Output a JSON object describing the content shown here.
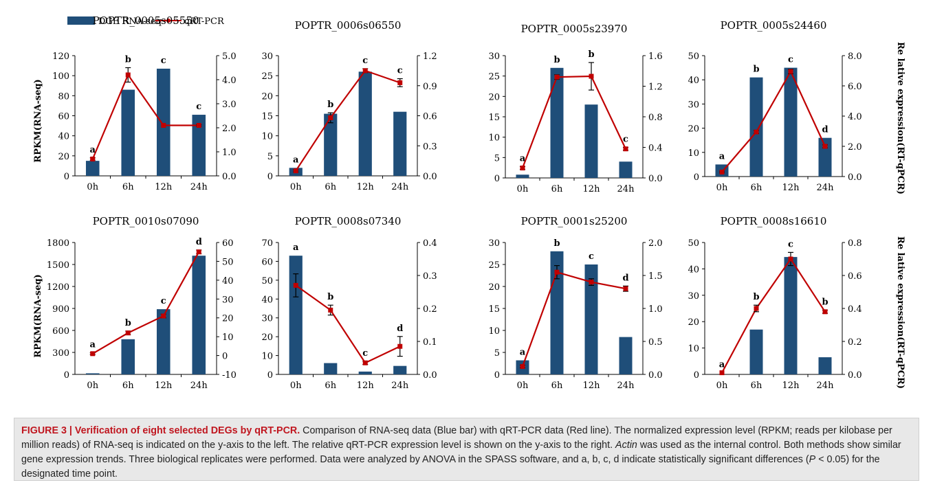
{
  "figure": {
    "legend": {
      "bar_label": "DGE RNA-seq",
      "line_label": "qRT-PCR"
    },
    "left_axis_label": "RPKM(RNA-seq)",
    "right_axis_label": "Re lative expression(RT-qPCR)",
    "colors": {
      "bar": "#1f4e79",
      "line": "#c00000"
    }
  },
  "chart_data": [
    {
      "type": "bar",
      "title": "POPTR_0005s05550",
      "categories": [
        "0h",
        "6h",
        "12h",
        "24h"
      ],
      "ylim": [
        0,
        120
      ],
      "yticks": [
        "0",
        "20",
        "40",
        "60",
        "80",
        "100",
        "120"
      ],
      "y2lim": [
        0,
        5
      ],
      "y2ticks": [
        "0.0",
        "1.0",
        "2.0",
        "3.0",
        "4.0",
        "5.0"
      ],
      "series": [
        {
          "name": "DGE RNA-seq",
          "values": [
            15,
            86,
            107,
            61
          ]
        },
        {
          "name": "qRT-PCR",
          "values": [
            0.7,
            4.2,
            2.1,
            2.1
          ],
          "errors": [
            0.05,
            0.3,
            0,
            0.03
          ]
        }
      ],
      "letters": [
        "a",
        "b",
        "c",
        "c"
      ]
    },
    {
      "type": "bar",
      "title": "POPTR_0006s06550",
      "categories": [
        "0h",
        "6h",
        "12h",
        "24h"
      ],
      "ylim": [
        0,
        30
      ],
      "yticks": [
        "0",
        "5",
        "10",
        "15",
        "20",
        "25",
        "30"
      ],
      "y2lim": [
        0,
        1.2
      ],
      "y2ticks": [
        "0.0",
        "0.3",
        "0.6",
        "0.9",
        "1.2"
      ],
      "series": [
        {
          "name": "DGE RNA-seq",
          "values": [
            2,
            15.5,
            26,
            16
          ]
        },
        {
          "name": "qRT-PCR",
          "values": [
            0.05,
            0.58,
            1.05,
            0.93
          ],
          "errors": [
            0.01,
            0.05,
            0.02,
            0.04
          ]
        }
      ],
      "letters": [
        "a",
        "b",
        "c",
        "c"
      ]
    },
    {
      "type": "bar",
      "title": "POPTR_0005s23970",
      "categories": [
        "0h",
        "6h",
        "12h",
        "24h"
      ],
      "ylim": [
        0,
        30
      ],
      "yticks": [
        "0",
        "5",
        "10",
        "15",
        "20",
        "25",
        "30"
      ],
      "y2lim": [
        0,
        1.6
      ],
      "y2ticks": [
        "0.0",
        "0.4",
        "0.8",
        "1.2",
        "1.6"
      ],
      "series": [
        {
          "name": "DGE RNA-seq",
          "values": [
            0.8,
            27,
            18,
            4
          ]
        },
        {
          "name": "qRT-PCR",
          "values": [
            0.13,
            1.32,
            1.33,
            0.38
          ],
          "errors": [
            0.02,
            0.03,
            0.18,
            0.02
          ]
        }
      ],
      "letters": [
        "a",
        "b",
        "b",
        "c"
      ]
    },
    {
      "type": "bar",
      "title": "POPTR_0005s24460",
      "categories": [
        "0h",
        "6h",
        "12h",
        "24h"
      ],
      "ylim": [
        0,
        50
      ],
      "yticks": [
        "0",
        "10",
        "20",
        "30",
        "40",
        "50"
      ],
      "y2lim": [
        0,
        8
      ],
      "y2ticks": [
        "0.0",
        "2.0",
        "4.0",
        "6.0",
        "8.0"
      ],
      "series": [
        {
          "name": "DGE RNA-seq",
          "values": [
            5,
            41,
            45,
            16
          ]
        },
        {
          "name": "qRT-PCR",
          "values": [
            0.3,
            2.95,
            6.95,
            2.0
          ],
          "errors": [
            0.05,
            0.1,
            0.15,
            0.1
          ]
        }
      ],
      "letters": [
        "a",
        "b",
        "c",
        "d"
      ]
    },
    {
      "type": "bar",
      "title": "POPTR_0010s07090",
      "categories": [
        "0h",
        "6h",
        "12h",
        "24h"
      ],
      "ylim": [
        0,
        1800
      ],
      "yticks": [
        "0",
        "300",
        "600",
        "900",
        "1200",
        "1500",
        "1800"
      ],
      "y2lim": [
        -10,
        60
      ],
      "y2ticks": [
        "-10",
        "0",
        "10",
        "20",
        "30",
        "40",
        "50",
        "60"
      ],
      "series": [
        {
          "name": "DGE RNA-seq",
          "values": [
            15,
            480,
            890,
            1620
          ]
        },
        {
          "name": "qRT-PCR",
          "values": [
            1,
            12,
            21,
            55
          ],
          "errors": [
            0.5,
            1,
            1,
            1
          ]
        }
      ],
      "letters": [
        "a",
        "b",
        "c",
        "d"
      ]
    },
    {
      "type": "bar",
      "title": "POPTR_0008s07340",
      "categories": [
        "0h",
        "6h",
        "12h",
        "24h"
      ],
      "ylim": [
        0,
        70
      ],
      "yticks": [
        "0",
        "10",
        "20",
        "30",
        "40",
        "50",
        "60",
        "70"
      ],
      "y2lim": [
        0,
        0.4
      ],
      "y2ticks": [
        "0.0",
        "0.1",
        "0.2",
        "0.3",
        "0.4"
      ],
      "series": [
        {
          "name": "DGE RNA-seq",
          "values": [
            63,
            6,
            1.5,
            4.5
          ]
        },
        {
          "name": "qRT-PCR",
          "values": [
            0.27,
            0.195,
            0.035,
            0.085
          ],
          "errors": [
            0.035,
            0.015,
            0.005,
            0.03
          ]
        }
      ],
      "letters": [
        "a",
        "b",
        "c",
        "d"
      ]
    },
    {
      "type": "bar",
      "title": "POPTR_0001s25200",
      "categories": [
        "0h",
        "6h",
        "12h",
        "24h"
      ],
      "ylim": [
        0,
        30
      ],
      "yticks": [
        "0",
        "5",
        "10",
        "15",
        "20",
        "25",
        "30"
      ],
      "y2lim": [
        0,
        2
      ],
      "y2ticks": [
        "0.0",
        "0.5",
        "1.0",
        "1.5",
        "2.0"
      ],
      "series": [
        {
          "name": "DGE RNA-seq",
          "values": [
            3.2,
            28,
            25,
            8.5
          ]
        },
        {
          "name": "qRT-PCR",
          "values": [
            0.12,
            1.55,
            1.4,
            1.3
          ],
          "errors": [
            0.02,
            0.1,
            0.05,
            0.04
          ]
        }
      ],
      "letters": [
        "a",
        "b",
        "c",
        "d"
      ]
    },
    {
      "type": "bar",
      "title": "POPTR_0008s16610",
      "categories": [
        "0h",
        "6h",
        "12h",
        "24h"
      ],
      "ylim": [
        0,
        50
      ],
      "yticks": [
        "0",
        "10",
        "20",
        "30",
        "40",
        "50"
      ],
      "y2lim": [
        0,
        0.8
      ],
      "y2ticks": [
        "0.0",
        "0.2",
        "0.4",
        "0.6",
        "0.8"
      ],
      "series": [
        {
          "name": "DGE RNA-seq",
          "values": [
            0,
            17,
            44.5,
            6.5
          ]
        },
        {
          "name": "qRT-PCR",
          "values": [
            0.01,
            0.4,
            0.7,
            0.38
          ],
          "errors": [
            0,
            0.02,
            0.04,
            0.01
          ]
        }
      ],
      "letters": [
        "a",
        "b",
        "c",
        "b"
      ]
    }
  ],
  "caption": {
    "label": "FIGURE 3 | Verification of eight selected DEGs by qRT-PCR.",
    "text_1": " Comparison of RNA-seq data (Blue bar) with qRT-PCR data (Red line). The normalized expression level (RPKM; reads per kilobase per million reads) of RNA-seq is indicated on the y-axis to the left. The relative qRT-PCR expression level is shown on the y-axis to the right. ",
    "italic": "Actin",
    "text_2": " was used as the internal control. Both methods show similar gene expression trends. Three biological replicates were performed. Data were analyzed by ANOVA in the SPASS software, and a, b, c, d indicate statistically significant differences (",
    "italic_p": "P",
    "text_3": " < 0.05) for the designated time point."
  }
}
